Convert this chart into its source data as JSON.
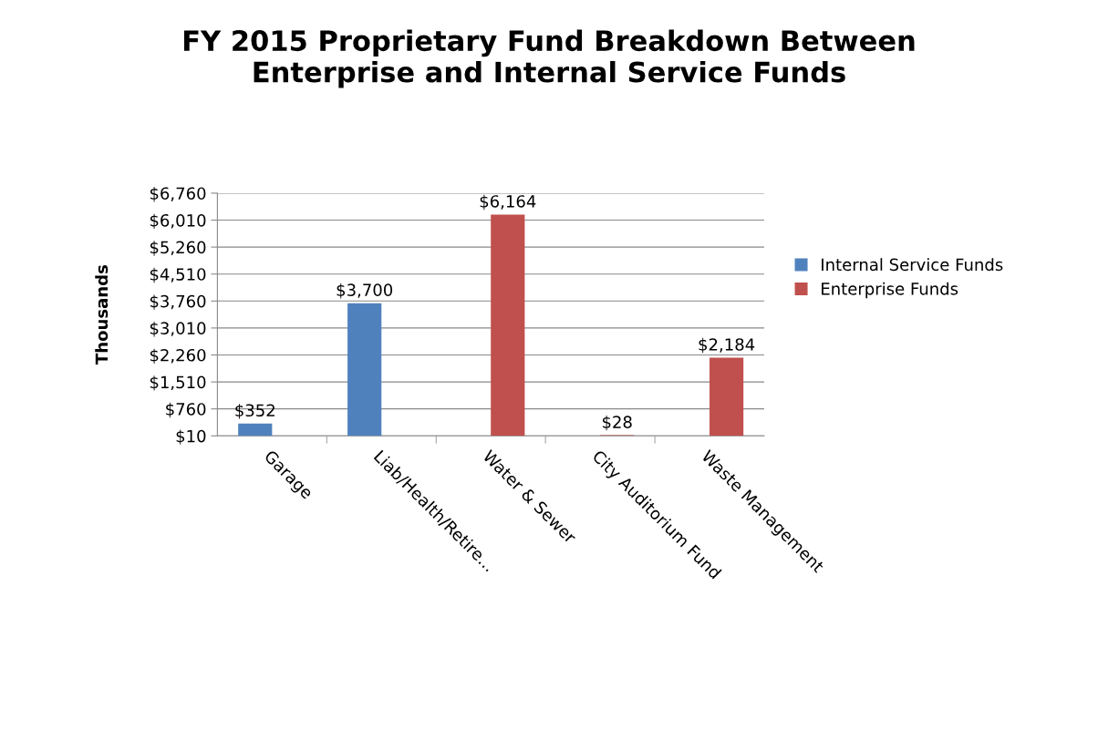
{
  "chart_data": {
    "type": "bar",
    "title": "FY 2015 Proprietary Fund Breakdown Between\nEnterprise and Internal Service Funds",
    "ylabel": "Thousands",
    "categories": [
      "Garage",
      "Liab/Health/Retire...",
      "Water & Sewer",
      "City Auditorium Fund",
      "Waste Management"
    ],
    "series": [
      {
        "name": "Internal Service Funds",
        "color": "#4f81bd",
        "values": [
          352,
          3700,
          null,
          null,
          null
        ],
        "value_labels": [
          "$352",
          "$3,700",
          null,
          null,
          null
        ]
      },
      {
        "name": "Enterprise Funds",
        "color": "#c0504d",
        "values": [
          null,
          null,
          6164,
          28,
          2184
        ],
        "value_labels": [
          null,
          null,
          "$6,164",
          "$28",
          "$2,184"
        ]
      }
    ],
    "ylim": [
      10,
      6760
    ],
    "yticks": [
      {
        "value": 10,
        "label": "$10"
      },
      {
        "value": 760,
        "label": "$760"
      },
      {
        "value": 1510,
        "label": "$1,510"
      },
      {
        "value": 2260,
        "label": "$2,260"
      },
      {
        "value": 3010,
        "label": "$3,010"
      },
      {
        "value": 3760,
        "label": "$3,760"
      },
      {
        "value": 4510,
        "label": "$4,510"
      },
      {
        "value": 5260,
        "label": "$5,260"
      },
      {
        "value": 6010,
        "label": "$6,010"
      },
      {
        "value": 6760,
        "label": "$6,760"
      }
    ],
    "grid": "y",
    "legend": "right"
  }
}
